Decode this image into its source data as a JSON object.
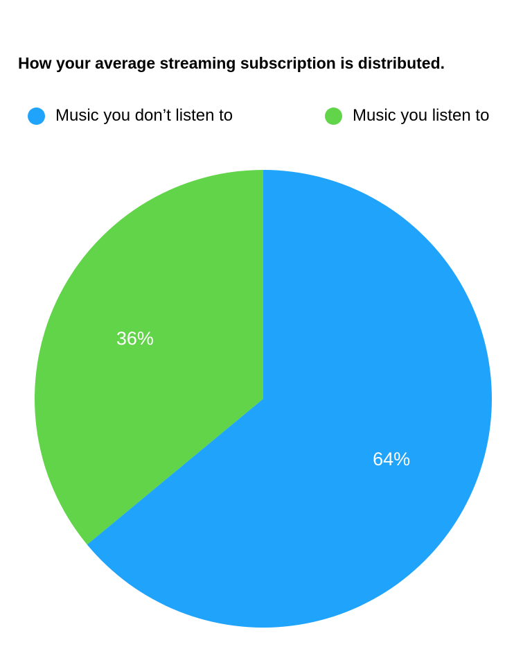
{
  "chart_data": {
    "type": "pie",
    "title": "How your average streaming subscription is distributed.",
    "categories": [
      "Music you don’t listen to",
      "Music you listen to"
    ],
    "values": [
      64,
      36
    ],
    "value_labels": [
      "64%",
      "36%"
    ],
    "colors": [
      "#1fa3fb",
      "#62d44a"
    ],
    "start_angle_deg": 0,
    "direction": "clockwise",
    "legend_position": "top"
  }
}
